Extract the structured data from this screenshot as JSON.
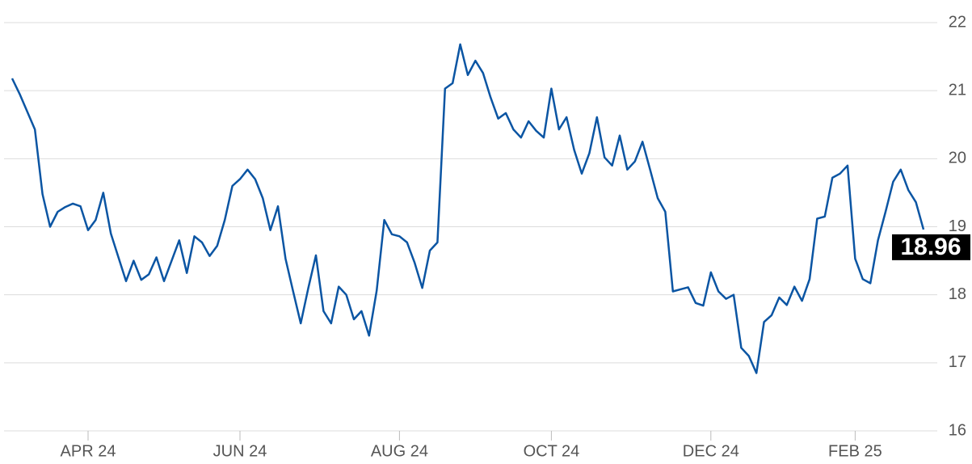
{
  "chart_data": {
    "type": "line",
    "categories": [
      null,
      null,
      null,
      null,
      null,
      null,
      null,
      null,
      null,
      null,
      "APR 24",
      null,
      null,
      null,
      null,
      null,
      null,
      null,
      null,
      null,
      null,
      null,
      null,
      null,
      null,
      null,
      null,
      null,
      null,
      null,
      "JUN 24",
      null,
      null,
      null,
      null,
      null,
      null,
      null,
      null,
      null,
      null,
      null,
      null,
      null,
      null,
      null,
      null,
      null,
      null,
      null,
      null,
      "AUG 24",
      null,
      null,
      null,
      null,
      null,
      null,
      null,
      null,
      null,
      null,
      null,
      null,
      null,
      null,
      null,
      null,
      null,
      null,
      null,
      "OCT 24",
      null,
      null,
      null,
      null,
      null,
      null,
      null,
      null,
      null,
      null,
      null,
      null,
      null,
      null,
      null,
      null,
      null,
      null,
      null,
      null,
      "DEC 24",
      null,
      null,
      null,
      null,
      null,
      null,
      null,
      null,
      null,
      null,
      null,
      null,
      null,
      null,
      null,
      null,
      null,
      null,
      "FEB 25",
      null,
      null,
      null,
      null,
      null,
      null,
      null,
      null,
      null
    ],
    "series": [
      {
        "color": "#0b55a3",
        "values": [
          21.18,
          20.95,
          20.69,
          20.43,
          19.48,
          19.0,
          19.22,
          19.29,
          19.34,
          19.3,
          18.95,
          19.1,
          19.5,
          18.9,
          18.55,
          18.2,
          18.5,
          18.22,
          18.3,
          18.55,
          18.2,
          18.5,
          18.8,
          18.32,
          18.86,
          18.77,
          18.57,
          18.72,
          19.1,
          19.6,
          19.7,
          19.84,
          19.7,
          19.42,
          18.95,
          19.3,
          18.53,
          18.05,
          17.58,
          18.1,
          18.58,
          17.76,
          17.58,
          18.12,
          18.0,
          17.64,
          17.76,
          17.4,
          18.06,
          19.1,
          18.89,
          18.86,
          18.77,
          18.47,
          18.1,
          18.65,
          18.77,
          21.03,
          21.11,
          21.68,
          21.23,
          21.44,
          21.26,
          20.9,
          20.59,
          20.67,
          20.43,
          20.31,
          20.55,
          20.41,
          20.31,
          21.03,
          20.43,
          20.61,
          20.13,
          19.78,
          20.08,
          20.61,
          20.02,
          19.9,
          20.34,
          19.84,
          19.96,
          20.25,
          19.84,
          19.42,
          19.22,
          18.05,
          18.08,
          18.11,
          17.88,
          17.84,
          18.33,
          18.05,
          17.94,
          18.0,
          17.22,
          17.1,
          16.85,
          17.6,
          17.7,
          17.96,
          17.85,
          18.12,
          17.91,
          18.23,
          19.12,
          19.15,
          19.72,
          19.78,
          19.9,
          18.53,
          18.23,
          18.17,
          18.8,
          19.22,
          19.66,
          19.84,
          19.54,
          19.36,
          18.96
        ]
      }
    ],
    "last_value_label": "18.96",
    "ylim": [
      16,
      22
    ],
    "yticks": [
      16,
      17,
      18,
      19,
      20,
      21,
      22
    ],
    "grid": true
  }
}
